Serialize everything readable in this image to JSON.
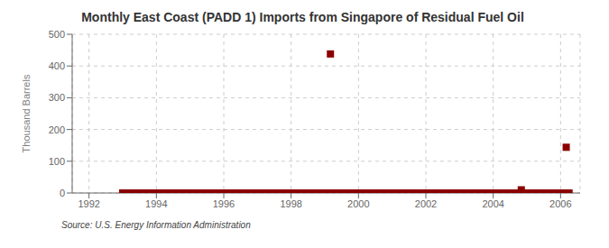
{
  "chart_data": {
    "type": "scatter",
    "title": "Monthly East Coast (PADD 1) Imports from Singapore of Residual Fuel Oil",
    "ylabel": "Thousand Barrels",
    "annotations": [
      "Source: U.S. Energy Information Administration"
    ],
    "x": [
      1993.0,
      1993.083,
      1993.167,
      1993.25,
      1993.333,
      1993.417,
      1993.5,
      1993.583,
      1993.667,
      1993.75,
      1993.833,
      1993.917,
      1994.0,
      1994.083,
      1994.167,
      1994.25,
      1994.333,
      1994.417,
      1994.5,
      1994.583,
      1994.667,
      1994.75,
      1994.833,
      1994.917,
      1995.0,
      1995.083,
      1995.167,
      1995.25,
      1995.333,
      1995.417,
      1995.5,
      1995.583,
      1995.667,
      1995.75,
      1995.833,
      1995.917,
      1996.0,
      1996.083,
      1996.167,
      1996.25,
      1996.333,
      1996.417,
      1996.5,
      1996.583,
      1996.667,
      1996.75,
      1996.833,
      1996.917,
      1997.0,
      1997.083,
      1997.167,
      1997.25,
      1997.333,
      1997.417,
      1997.5,
      1997.583,
      1997.667,
      1997.75,
      1997.833,
      1997.917,
      1998.0,
      1998.083,
      1998.167,
      1998.25,
      1998.333,
      1998.417,
      1998.5,
      1998.583,
      1998.667,
      1998.75,
      1998.833,
      1998.917,
      1999.0,
      1999.083,
      1999.167,
      1999.25,
      1999.333,
      1999.417,
      1999.5,
      1999.583,
      1999.667,
      1999.75,
      1999.833,
      1999.917,
      2000.0,
      2000.083,
      2000.167,
      2000.25,
      2000.333,
      2000.417,
      2000.5,
      2000.583,
      2000.667,
      2000.75,
      2000.833,
      2000.917,
      2001.0,
      2001.083,
      2001.167,
      2001.25,
      2001.333,
      2001.417,
      2001.5,
      2001.583,
      2001.667,
      2001.75,
      2001.833,
      2001.917,
      2002.0,
      2002.083,
      2002.167,
      2002.25,
      2002.333,
      2002.417,
      2002.5,
      2002.583,
      2002.667,
      2002.75,
      2002.833,
      2002.917,
      2003.0,
      2003.083,
      2003.167,
      2003.25,
      2003.333,
      2003.417,
      2003.5,
      2003.583,
      2003.667,
      2003.75,
      2003.833,
      2003.917,
      2004.0,
      2004.083,
      2004.167,
      2004.25,
      2004.333,
      2004.417,
      2004.5,
      2004.583,
      2004.667,
      2004.75,
      2004.833,
      2004.917,
      2005.0,
      2005.083,
      2005.167,
      2005.25,
      2005.333,
      2005.417,
      2005.5,
      2005.583,
      2005.667,
      2005.75,
      2005.833,
      2005.917,
      2006.0,
      2006.083,
      2006.167,
      2006.25
    ],
    "values": [
      0,
      0,
      0,
      0,
      0,
      0,
      0,
      0,
      0,
      0,
      0,
      0,
      0,
      0,
      0,
      0,
      0,
      0,
      0,
      0,
      0,
      0,
      0,
      0,
      0,
      0,
      0,
      0,
      0,
      0,
      0,
      0,
      0,
      0,
      0,
      0,
      0,
      0,
      0,
      0,
      0,
      0,
      0,
      0,
      0,
      0,
      0,
      0,
      0,
      0,
      0,
      0,
      0,
      0,
      0,
      0,
      0,
      0,
      0,
      0,
      0,
      0,
      0,
      0,
      0,
      0,
      0,
      0,
      0,
      0,
      0,
      0,
      0,
      0,
      438,
      0,
      0,
      0,
      0,
      0,
      0,
      0,
      0,
      0,
      0,
      0,
      0,
      0,
      0,
      0,
      0,
      0,
      0,
      0,
      0,
      0,
      0,
      0,
      0,
      0,
      0,
      0,
      0,
      0,
      0,
      0,
      0,
      0,
      0,
      0,
      0,
      0,
      0,
      0,
      0,
      0,
      0,
      0,
      0,
      0,
      0,
      0,
      0,
      0,
      0,
      0,
      0,
      0,
      0,
      0,
      0,
      0,
      0,
      0,
      0,
      0,
      0,
      0,
      0,
      0,
      0,
      0,
      10,
      0,
      0,
      0,
      0,
      0,
      0,
      0,
      0,
      0,
      0,
      0,
      0,
      0,
      0,
      0,
      144,
      0
    ],
    "color": "#8b0000",
    "marker": "square",
    "xlim": [
      1991.5,
      2006.58
    ],
    "xticks": [
      1992,
      1994,
      1996,
      1998,
      2000,
      2002,
      2004,
      2006
    ],
    "ylim": [
      0,
      500
    ],
    "yticks": [
      0,
      100,
      200,
      300,
      400,
      500
    ],
    "grid": true
  }
}
